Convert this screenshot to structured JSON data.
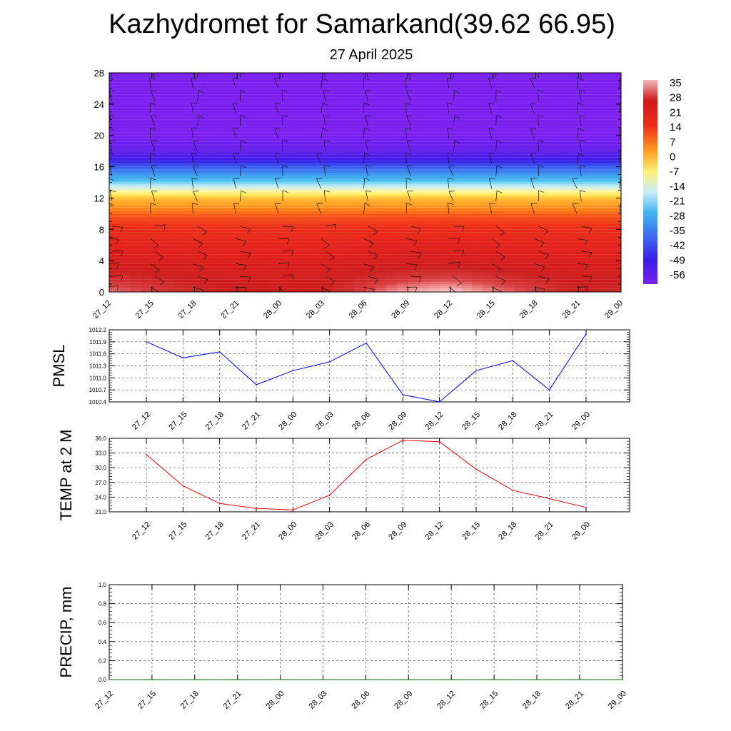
{
  "title": "Kazhydromet for Samarkand(39.62 66.95)",
  "subtitle": "27 April 2025",
  "chart_data": [
    {
      "type": "heatmap",
      "description": "Vertical cross-section of temperature with wind barbs",
      "x_tick_labels": [
        "27_12",
        "27_15",
        "27_18",
        "27_21",
        "28_00",
        "28_03",
        "28_06",
        "28_09",
        "28_12",
        "28_15",
        "28_18",
        "28_21",
        "29_00"
      ],
      "y_tick_labels": [
        "0",
        "4",
        "8",
        "12",
        "16",
        "20",
        "24",
        "28"
      ],
      "ylim": [
        0,
        28
      ],
      "colorbar": {
        "labels": [
          "35",
          "28",
          "21",
          "14",
          "7",
          "0",
          "-7",
          "-14",
          "-21",
          "-28",
          "-35",
          "-42",
          "-49",
          "-56"
        ],
        "range": [
          -60,
          38
        ]
      },
      "temperature_profile": {
        "levels": [
          0,
          2,
          4,
          6,
          8,
          10,
          11,
          12,
          13,
          14,
          15,
          16,
          17,
          18,
          19,
          20,
          28
        ],
        "base_values": [
          30,
          26,
          22,
          19,
          16,
          10,
          4,
          0,
          -12,
          -20,
          -30,
          -40,
          -48,
          -56,
          -58,
          -60,
          -60
        ],
        "surface_anomaly_by_time": [
          4,
          1,
          -2,
          -4,
          -5,
          -4,
          2,
          7,
          9,
          5,
          1,
          -3,
          -2
        ]
      }
    },
    {
      "type": "line",
      "ylabel": "PMSL",
      "categories": [
        "27_12",
        "27_15",
        "27_18",
        "27_21",
        "28_00",
        "28_03",
        "28_06",
        "28_09",
        "28_12",
        "28_15",
        "28_18",
        "28_21",
        "29_00"
      ],
      "values": [
        1011.9,
        1011.5,
        1011.65,
        1010.83,
        1011.18,
        1011.4,
        1011.87,
        1010.58,
        1010.4,
        1011.18,
        1011.43,
        1010.7,
        1012.1
      ],
      "ylim": [
        1010.4,
        1012.2
      ],
      "y_tick_labels": [
        "1012.2",
        "1011.9",
        "1011.6",
        "1011.3",
        "1011.0",
        "1010.7",
        "1010.4"
      ],
      "color": "#0000ff"
    },
    {
      "type": "line",
      "ylabel": "TEMP at 2 M",
      "categories": [
        "27_12",
        "27_15",
        "27_18",
        "27_21",
        "28_00",
        "28_03",
        "28_06",
        "28_09",
        "28_12",
        "28_15",
        "28_18",
        "28_21",
        "29_00"
      ],
      "values": [
        32.7,
        26.3,
        22.7,
        21.7,
        21.4,
        24.4,
        31.7,
        35.6,
        35.3,
        29.7,
        25.4,
        23.7,
        21.9
      ],
      "ylim": [
        21.0,
        36.0
      ],
      "y_tick_labels": [
        "36.0",
        "33.0",
        "30.0",
        "27.0",
        "24.0",
        "21.0"
      ],
      "color": "#ff0000"
    },
    {
      "type": "line",
      "ylabel": "PRECIP, mm",
      "categories": [
        "27_12",
        "27_15",
        "27_18",
        "27_21",
        "28_00",
        "28_03",
        "28_06",
        "28_09",
        "28_12",
        "28_15",
        "28_18",
        "28_21",
        "29_00"
      ],
      "values": [
        0,
        0,
        0,
        0,
        0,
        0,
        0,
        0,
        0,
        0,
        0,
        0,
        0
      ],
      "ylim": [
        0.0,
        1.0
      ],
      "y_tick_labels": [
        "1.0",
        "0.8",
        "0.6",
        "0.4",
        "0.2",
        "0.0"
      ],
      "color": "#006400"
    }
  ]
}
